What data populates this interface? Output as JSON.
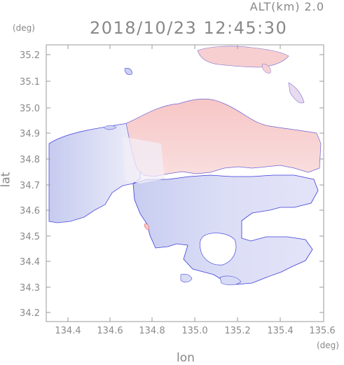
{
  "header": {
    "altitude_label": "ALT(km) 2.0",
    "timestamp": "2018/10/23 12:45:30"
  },
  "axes": {
    "y_unit": "(deg)",
    "x_unit": "(deg)",
    "x_label": "lon",
    "y_label": "lat",
    "x_ticks": [
      "134.4",
      "134.6",
      "134.8",
      "135.0",
      "135.2",
      "135.4",
      "135.6"
    ],
    "y_ticks": [
      "35.2",
      "35.1",
      "35.0",
      "34.9",
      "34.8",
      "34.7",
      "34.6",
      "34.5",
      "34.4",
      "34.3",
      "34.2"
    ]
  },
  "chart_data": {
    "type": "heatmap",
    "xlim": [
      134.3,
      135.6
    ],
    "ylim": [
      34.15,
      35.25
    ],
    "grid": false,
    "colors": {
      "positive": "#f6c9c9",
      "negative": "#cfd3f3",
      "near_zero": "#f1eef8",
      "outline": "#3b3bd9"
    }
  }
}
